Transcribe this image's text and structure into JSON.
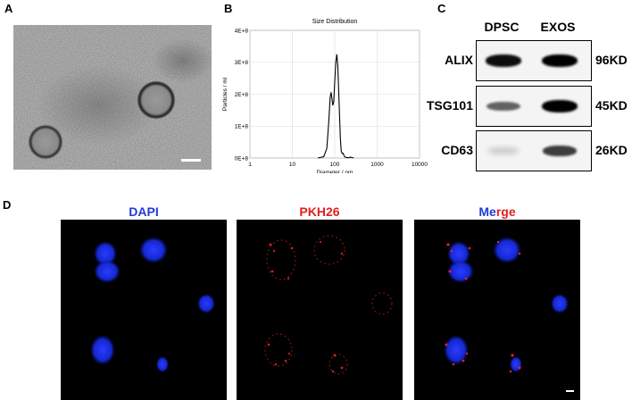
{
  "panels": {
    "a": {
      "letter": "A"
    },
    "b": {
      "letter": "B"
    },
    "c": {
      "letter": "C"
    },
    "d": {
      "letter": "D"
    }
  },
  "chart_data": {
    "type": "line",
    "title": "Size Distribution",
    "xlabel": "Diameter / nm",
    "ylabel": "Particles / ml",
    "x_scale": "log",
    "xlim": [
      1,
      10000
    ],
    "ylim": [
      0,
      400000000
    ],
    "x_ticks": [
      "1",
      "10",
      "100",
      "1000",
      "10000"
    ],
    "y_ticks": [
      "0E+8",
      "1E+8",
      "2E+8",
      "3E+8",
      "4E+8"
    ],
    "grid": true,
    "series": [
      {
        "x": [
          40,
          55,
          65,
          72,
          78,
          82,
          86,
          90,
          95,
          100,
          106,
          112,
          118,
          124,
          130,
          136,
          142,
          150,
          158,
          166,
          176,
          190,
          210,
          235,
          260,
          280
        ],
        "y": [
          0,
          4000000,
          30000000,
          110000000,
          190000000,
          206000000,
          185000000,
          165000000,
          178000000,
          240000000,
          300000000,
          325000000,
          290000000,
          210000000,
          130000000,
          60000000,
          22000000,
          14000000,
          15000000,
          7000000,
          3000000,
          1500000,
          800000,
          3000000,
          1000000,
          0
        ]
      }
    ],
    "color": "#000000"
  },
  "western_blot": {
    "columns": [
      "DPSC",
      "EXOS"
    ],
    "rows": [
      {
        "protein": "ALIX",
        "size": "96KD",
        "levels": [
          0.9,
          0.95
        ]
      },
      {
        "protein": "TSG101",
        "size": "45KD",
        "levels": [
          0.55,
          0.95
        ]
      },
      {
        "protein": "CD63",
        "size": "26KD",
        "levels": [
          0.12,
          0.7
        ]
      }
    ]
  },
  "fluorescence": {
    "channels": [
      {
        "title": "DAPI",
        "color": "#1f3bd8"
      },
      {
        "title": "PKH26",
        "color": "#e0201e"
      },
      {
        "title_part1": "Me",
        "title_part2": "rge",
        "color1": "#1f3bd8",
        "color2": "#e0201e"
      }
    ]
  }
}
